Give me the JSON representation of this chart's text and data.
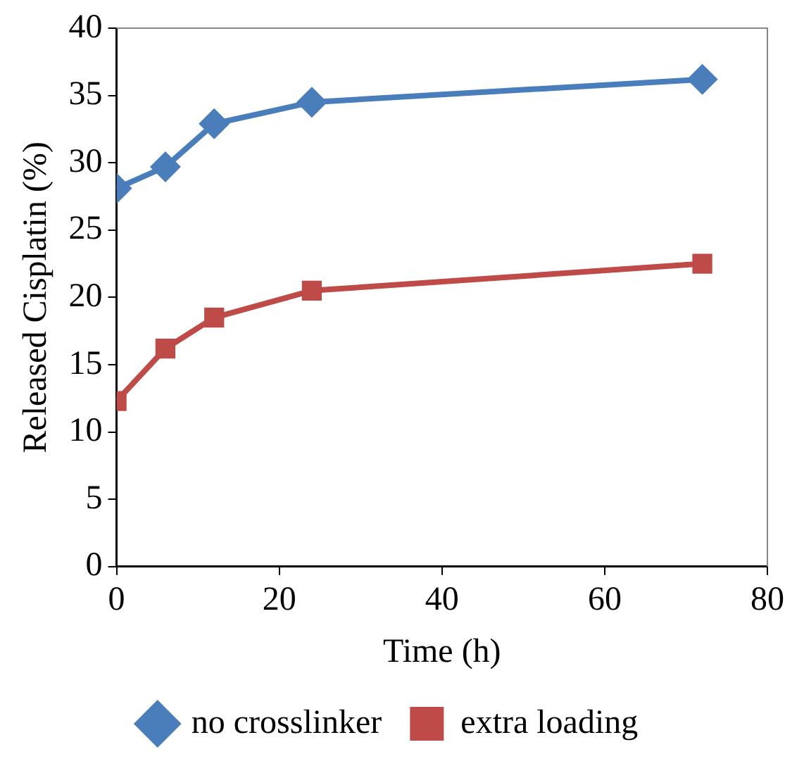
{
  "chart_data": {
    "type": "line",
    "xlabel": "Time (h)",
    "ylabel": "Released Cisplatin (%)",
    "x": [
      0,
      6,
      12,
      24,
      72
    ],
    "series": [
      {
        "name": "no crosslinker",
        "color": "#4a7ebb",
        "marker": "diamond",
        "values": [
          28.1,
          29.7,
          32.9,
          34.5,
          36.2
        ]
      },
      {
        "name": "extra loading",
        "color": "#be4b48",
        "marker": "square",
        "values": [
          12.3,
          16.2,
          18.5,
          20.5,
          22.5
        ]
      }
    ],
    "xlim": [
      0,
      80
    ],
    "xticks": [
      0,
      20,
      40,
      60,
      80
    ],
    "ylim": [
      0,
      40
    ],
    "yticks": [
      0,
      5,
      10,
      15,
      20,
      25,
      30,
      35,
      40
    ],
    "grid": false,
    "legend": "bottom"
  }
}
